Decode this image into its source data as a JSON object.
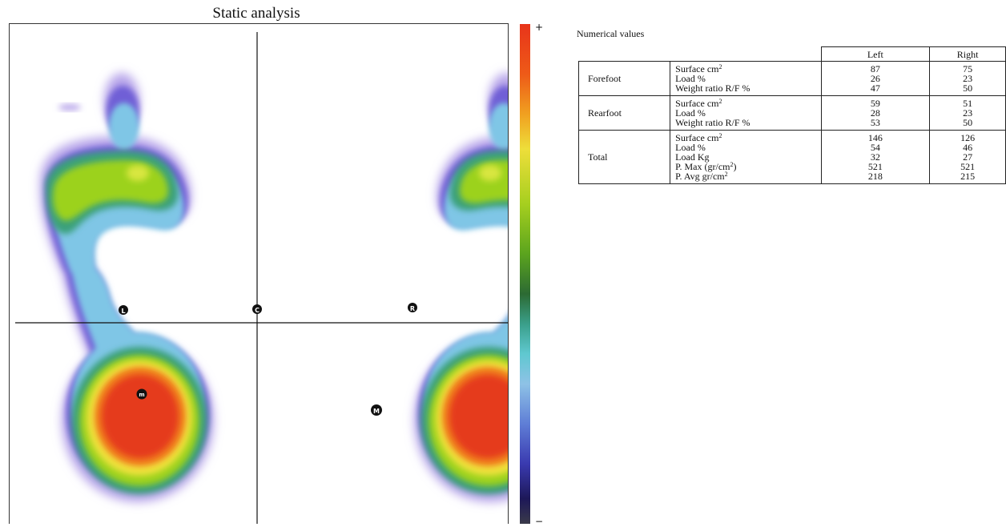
{
  "plot": {
    "title": "Static analysis",
    "colorbar": {
      "max_label": "+",
      "min_label": "−"
    },
    "markers": {
      "left_axis": "L",
      "center": "C",
      "right_axis": "R",
      "left_peak": "m",
      "right_peak": "M"
    }
  },
  "numerical": {
    "heading": "Numerical values",
    "columns": [
      "Left",
      "Right"
    ],
    "groups": [
      {
        "name": "Forefoot",
        "rows": [
          {
            "metric": "Surface cm",
            "sup": "2",
            "after": "",
            "left": "87",
            "right": "75"
          },
          {
            "metric": "Load %",
            "sup": "",
            "after": "",
            "left": "26",
            "right": "23"
          },
          {
            "metric": "Weight ratio R/F %",
            "sup": "",
            "after": "",
            "left": "47",
            "right": "50"
          }
        ]
      },
      {
        "name": "Rearfoot",
        "rows": [
          {
            "metric": "Surface cm",
            "sup": "2",
            "after": "",
            "left": "59",
            "right": "51"
          },
          {
            "metric": "Load %",
            "sup": "",
            "after": "",
            "left": "28",
            "right": "23"
          },
          {
            "metric": "Weight ratio R/F %",
            "sup": "",
            "after": "",
            "left": "53",
            "right": "50"
          }
        ]
      },
      {
        "name": "Total",
        "rows": [
          {
            "metric": "Surface cm",
            "sup": "2",
            "after": "",
            "left": "146",
            "right": "126"
          },
          {
            "metric": "Load %",
            "sup": "",
            "after": "",
            "left": "54",
            "right": "46"
          },
          {
            "metric": "Load Kg",
            "sup": "",
            "after": "",
            "left": "32",
            "right": "27"
          },
          {
            "metric": "P. Max (gr/cm",
            "sup": "2",
            "after": ")",
            "left": "521",
            "right": "521"
          },
          {
            "metric": "P. Avg gr/cm",
            "sup": "2",
            "after": "",
            "left": "218",
            "right": "215"
          }
        ]
      }
    ]
  }
}
